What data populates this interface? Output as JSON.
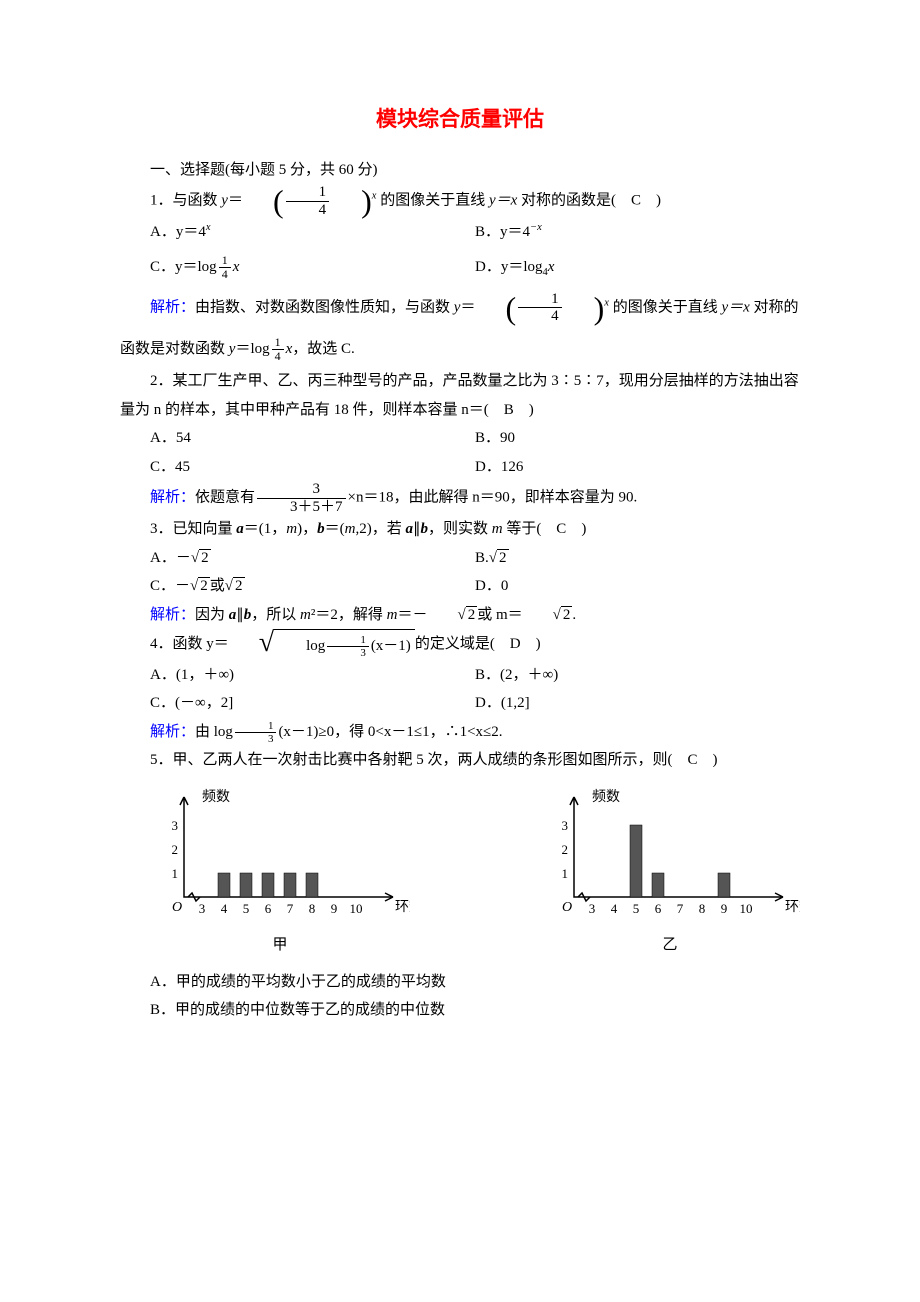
{
  "title": "模块综合质量评估",
  "title_color": "#ff0000",
  "section1": "一、选择题(每小题 5 分，共 60 分)",
  "q1": {
    "stem_pre": "1．与函数 ",
    "stem_mid": " 的图像关于直线 ",
    "stem_eq": "y＝x",
    "stem_post": " 对称的函数是(　C　)",
    "A": "A．y＝4",
    "A_sup": "x",
    "B_pre": "B．y＝4",
    "B_sup": "−x",
    "C": "C．y＝log",
    "C_frac_num": "1",
    "C_frac_den": "4",
    "C_tail": "x",
    "D": "D．y＝log",
    "D_sub": "4",
    "D_tail": "x",
    "expl_label": "解析：",
    "expl_a": "由指数、对数函数图像性质知，与函数 ",
    "expl_b": " 的图像关于直线 ",
    "expl_eq": "y＝x",
    "expl_c": " 对称的",
    "expl_line2_a": "函数是对数函数 ",
    "expl_line2_b": "，故选 C."
  },
  "q2": {
    "stem": "2．某工厂生产甲、乙、丙三种型号的产品，产品数量之比为 3∶5∶7，现用分层抽样的方法抽出容量为 n 的样本，其中甲种产品有 18 件，则样本容量 n＝(　B　)",
    "A": "A．54",
    "B": "B．90",
    "C": "C．45",
    "D": "D．126",
    "expl_label": "解析：",
    "expl_a": "依题意有",
    "frac_num": "3",
    "frac_den": "3＋5＋7",
    "expl_b": "×n＝18，由此解得 n＝90，即样本容量为 90."
  },
  "q3": {
    "stem": "3．已知向量 a＝(1，m)，b＝(m,2)，若 a∥b，则实数 m 等于(　C　)",
    "A_pre": "A．－",
    "B_pre": "B.",
    "C_pre": "C．－",
    "C_mid": "或",
    "D": "D．0",
    "sqrt2": "2",
    "expl_label": "解析：",
    "expl": "因为 a∥b，所以 m²＝2，解得 m＝－",
    "expl_mid": "或 m＝",
    "expl_end": "."
  },
  "q4": {
    "stem_pre": "4．函数 y＝",
    "stem_post": "的定义域是(　D　)",
    "log_frac_num": "1",
    "log_frac_den": "3",
    "log_arg": "(x－1)",
    "A": "A．(1，＋∞)",
    "B": "B．(2，＋∞)",
    "C": "C．(－∞，2]",
    "D": "D．(1,2]",
    "expl_label": "解析：",
    "expl_a": "由 log",
    "expl_b": "(x－1)≥0，得 0<x－1≤1，∴1<x≤2."
  },
  "q5": {
    "stem": "5．甲、乙两人在一次射击比赛中各射靶 5 次，两人成绩的条形图如图所示，则(　C　)",
    "A": "A．甲的成绩的平均数小于乙的成绩的平均数",
    "B": "B．甲的成绩的中位数等于乙的成绩的中位数",
    "chart_jia": {
      "label": "甲",
      "ylabel": "频数",
      "xlabel": "环数",
      "yticks": [
        1,
        2,
        3
      ],
      "xticks": [
        3,
        4,
        5,
        6,
        7,
        8,
        9,
        10
      ],
      "bars": [
        {
          "x": 4,
          "h": 1
        },
        {
          "x": 5,
          "h": 1
        },
        {
          "x": 6,
          "h": 1
        },
        {
          "x": 7,
          "h": 1
        },
        {
          "x": 8,
          "h": 1
        }
      ],
      "bar_color": "#555555"
    },
    "chart_yi": {
      "label": "乙",
      "ylabel": "频数",
      "xlabel": "环数",
      "yticks": [
        1,
        2,
        3
      ],
      "xticks": [
        3,
        4,
        5,
        6,
        7,
        8,
        9,
        10
      ],
      "bars": [
        {
          "x": 5,
          "h": 3
        },
        {
          "x": 6,
          "h": 1
        },
        {
          "x": 9,
          "h": 1
        }
      ],
      "bar_color": "#555555"
    }
  }
}
